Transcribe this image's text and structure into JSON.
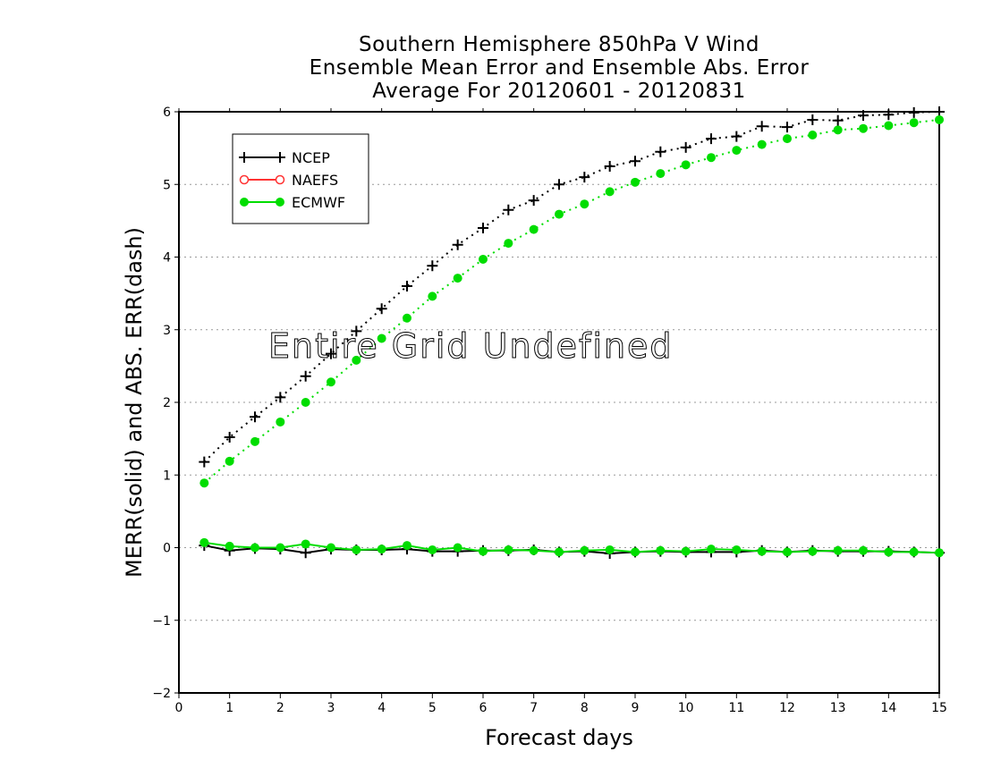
{
  "chart_data": {
    "type": "line",
    "title": [
      "Southern Hemisphere 850hPa V Wind",
      "Ensemble Mean Error and Ensemble Abs. Error",
      "Average For 20120601 - 20120831"
    ],
    "xlabel": "Forecast days",
    "ylabel": "MERR(solid) and ABS. ERR(dash)",
    "xlim": [
      0,
      15
    ],
    "ylim": [
      -2,
      6
    ],
    "xticks": [
      "0",
      "1",
      "2",
      "3",
      "4",
      "5",
      "6",
      "7",
      "8",
      "9",
      "10",
      "11",
      "12",
      "13",
      "14",
      "15"
    ],
    "yticks": [
      "-2",
      "-1",
      "0",
      "1",
      "2",
      "3",
      "4",
      "5",
      "6"
    ],
    "grid": "horizontal dotted",
    "legend_position": "top-left",
    "annotation": "Entire Grid Undefined",
    "x": [
      0.5,
      1,
      1.5,
      2,
      2.5,
      3,
      3.5,
      4,
      4.5,
      5,
      5.5,
      6,
      6.5,
      7,
      7.5,
      8,
      8.5,
      9,
      9.5,
      10,
      10.5,
      11,
      11.5,
      12,
      12.5,
      13,
      13.5,
      14,
      14.5,
      15
    ],
    "series": [
      {
        "name": "NCEP",
        "color": "#000000",
        "marker": "plus",
        "abs_error": [
          1.18,
          1.52,
          1.8,
          2.07,
          2.36,
          2.67,
          2.98,
          3.29,
          3.6,
          3.88,
          4.17,
          4.4,
          4.65,
          4.78,
          5.0,
          5.1,
          5.25,
          5.32,
          5.45,
          5.51,
          5.63,
          5.66,
          5.8,
          5.79,
          5.89,
          5.88,
          5.95,
          5.96,
          5.99,
          6.0
        ],
        "mean_error": [
          0.03,
          -0.04,
          -0.01,
          -0.02,
          -0.07,
          -0.02,
          -0.03,
          -0.03,
          -0.02,
          -0.05,
          -0.05,
          -0.04,
          -0.04,
          -0.03,
          -0.06,
          -0.05,
          -0.08,
          -0.06,
          -0.05,
          -0.06,
          -0.06,
          -0.06,
          -0.04,
          -0.06,
          -0.04,
          -0.05,
          -0.05,
          -0.05,
          -0.06,
          -0.07
        ]
      },
      {
        "name": "NAEFS",
        "color": "#ff3333",
        "marker": "open-circle",
        "abs_error": [],
        "mean_error": []
      },
      {
        "name": "ECMWF",
        "color": "#00dd00",
        "marker": "filled-circle",
        "abs_error": [
          0.89,
          1.19,
          1.46,
          1.73,
          2.0,
          2.28,
          2.58,
          2.88,
          3.16,
          3.46,
          3.71,
          3.97,
          4.19,
          4.38,
          4.59,
          4.73,
          4.9,
          5.03,
          5.15,
          5.27,
          5.37,
          5.47,
          5.55,
          5.63,
          5.68,
          5.75,
          5.77,
          5.81,
          5.85,
          5.89
        ],
        "mean_error": [
          0.07,
          0.02,
          0.0,
          0.0,
          0.05,
          0.0,
          -0.03,
          -0.02,
          0.03,
          -0.03,
          0.0,
          -0.05,
          -0.03,
          -0.04,
          -0.06,
          -0.04,
          -0.03,
          -0.06,
          -0.04,
          -0.05,
          -0.02,
          -0.03,
          -0.05,
          -0.06,
          -0.05,
          -0.04,
          -0.04,
          -0.06,
          -0.06,
          -0.07
        ]
      }
    ]
  }
}
